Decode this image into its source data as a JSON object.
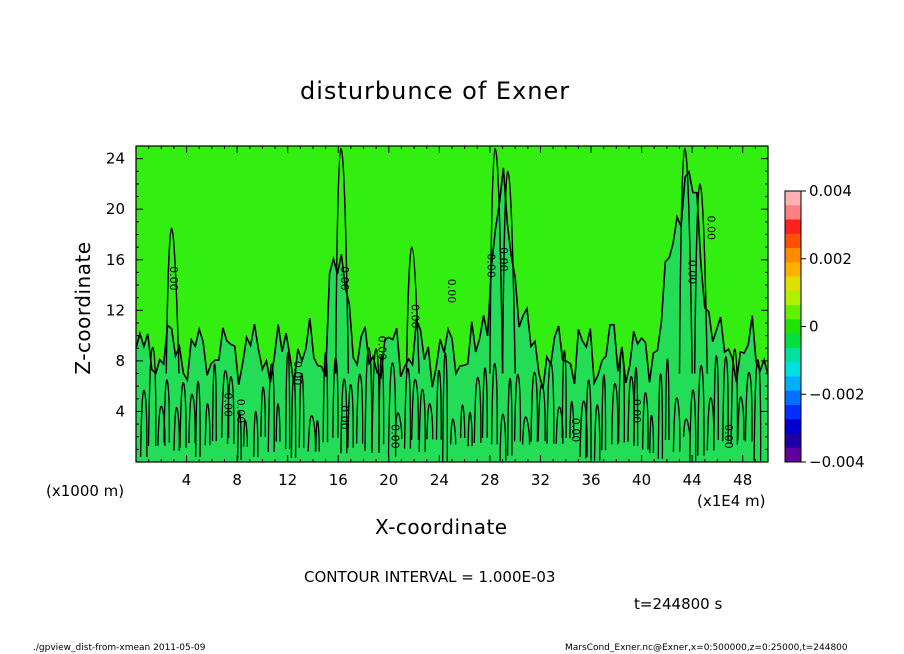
{
  "chart_data": {
    "type": "heatmap",
    "title": "disturbunce of Exner",
    "xlabel": "X-coordinate",
    "ylabel": "Z-coordinate",
    "x_units": "(x1000 m)",
    "x_ticks": [
      4,
      8,
      12,
      16,
      20,
      24,
      28,
      32,
      36,
      40,
      44,
      48
    ],
    "y_ticks": [
      4,
      8,
      12,
      16,
      20,
      24
    ],
    "xlim": [
      0,
      50
    ],
    "ylim": [
      0,
      25
    ],
    "x_extra_label": "(x1E4 m)",
    "field_values": [
      {
        "region": "upper",
        "value": 0.0003,
        "color": "#33ee11"
      },
      {
        "region": "lower",
        "value": -0.0003,
        "color": "#22dd55"
      }
    ],
    "contour_label": "0.00",
    "colorbar": {
      "min": -0.004,
      "max": 0.004,
      "tick_labels": [
        "0.004",
        "0.002",
        "0",
        "−0.002",
        "−0.004"
      ],
      "tick_values": [
        0.004,
        0.002,
        0,
        -0.002,
        -0.004
      ],
      "colors": [
        "#ffb0b0",
        "#ff8080",
        "#ff2020",
        "#ff5000",
        "#ff8c00",
        "#ffb000",
        "#e0e000",
        "#b0f000",
        "#60f000",
        "#22e000",
        "#00e040",
        "#00e0a0",
        "#00e0e0",
        "#00b0ff",
        "#0070ff",
        "#0030ff",
        "#0000d0",
        "#2000a0",
        "#6000a0"
      ]
    },
    "contour_interval": "CONTOUR INTERVAL = 1.000E-03",
    "time_label": "t=244800 s",
    "footer_left": "./gpview_dist-from-xmean  2011-05-09",
    "footer_right": "MarsCond_Exner.nc@Exner,x=0:500000,z=0:25000,t=244800"
  }
}
